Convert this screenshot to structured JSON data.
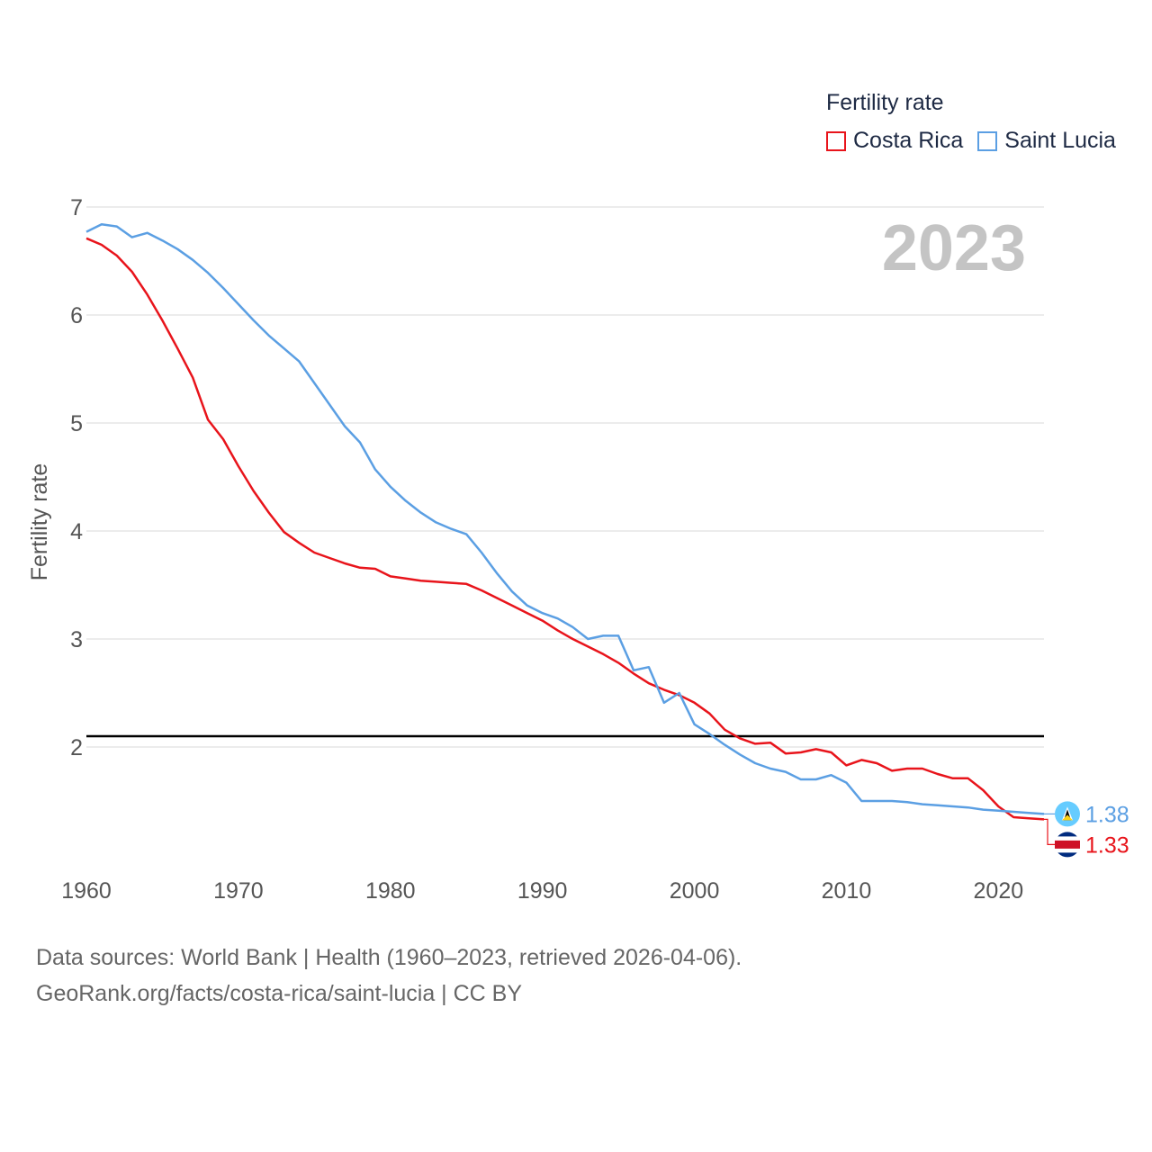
{
  "chart_data": {
    "type": "line",
    "title": "Fertility rate",
    "ylabel": "Fertility rate",
    "xlabel": "",
    "year_label": "2023",
    "x_range": [
      1960,
      2023
    ],
    "ylim": [
      1,
      7
    ],
    "x_ticks": [
      1960,
      1970,
      1980,
      1990,
      2000,
      2010,
      2020
    ],
    "y_ticks": [
      2,
      3,
      4,
      5,
      6,
      7
    ],
    "reference_line": 2.1,
    "x": [
      1960,
      1961,
      1962,
      1963,
      1964,
      1965,
      1966,
      1967,
      1968,
      1969,
      1970,
      1971,
      1972,
      1973,
      1974,
      1975,
      1976,
      1977,
      1978,
      1979,
      1980,
      1981,
      1982,
      1983,
      1984,
      1985,
      1986,
      1987,
      1988,
      1989,
      1990,
      1991,
      1992,
      1993,
      1994,
      1995,
      1996,
      1997,
      1998,
      1999,
      2000,
      2001,
      2002,
      2003,
      2004,
      2005,
      2006,
      2007,
      2008,
      2009,
      2010,
      2011,
      2012,
      2013,
      2014,
      2015,
      2016,
      2017,
      2018,
      2019,
      2020,
      2021,
      2022,
      2023
    ],
    "series": [
      {
        "name": "Costa Rica",
        "color": "#e8141b",
        "end_label": "1.33",
        "values": [
          6.71,
          6.65,
          6.55,
          6.4,
          6.19,
          5.95,
          5.69,
          5.42,
          5.03,
          4.85,
          4.6,
          4.37,
          4.17,
          3.99,
          3.89,
          3.8,
          3.75,
          3.7,
          3.66,
          3.65,
          3.58,
          3.56,
          3.54,
          3.53,
          3.52,
          3.51,
          3.45,
          3.38,
          3.31,
          3.24,
          3.17,
          3.08,
          3.0,
          2.93,
          2.86,
          2.78,
          2.68,
          2.59,
          2.53,
          2.48,
          2.41,
          2.31,
          2.16,
          2.08,
          2.03,
          2.04,
          1.94,
          1.95,
          1.98,
          1.95,
          1.83,
          1.88,
          1.85,
          1.78,
          1.8,
          1.8,
          1.75,
          1.71,
          1.71,
          1.6,
          1.45,
          1.35,
          1.34,
          1.33
        ]
      },
      {
        "name": "Saint Lucia",
        "color": "#5b9fe3",
        "end_label": "1.38",
        "values": [
          6.77,
          6.84,
          6.82,
          6.72,
          6.76,
          6.69,
          6.61,
          6.51,
          6.39,
          6.25,
          6.1,
          5.95,
          5.81,
          5.69,
          5.57,
          5.37,
          5.17,
          4.97,
          4.82,
          4.57,
          4.41,
          4.28,
          4.17,
          4.08,
          4.02,
          3.97,
          3.8,
          3.61,
          3.44,
          3.31,
          3.24,
          3.19,
          3.11,
          3.0,
          3.03,
          3.03,
          2.71,
          2.74,
          2.41,
          2.5,
          2.21,
          2.12,
          2.02,
          1.93,
          1.85,
          1.8,
          1.77,
          1.7,
          1.7,
          1.74,
          1.67,
          1.5,
          1.5,
          1.5,
          1.49,
          1.47,
          1.46,
          1.45,
          1.44,
          1.42,
          1.41,
          1.4,
          1.39,
          1.38
        ]
      }
    ]
  },
  "source_line1": "Data sources: World Bank | Health (1960–2023, retrieved 2026-04-06).",
  "source_line2": "GeoRank.org/facts/costa-rica/saint-lucia | CC BY"
}
